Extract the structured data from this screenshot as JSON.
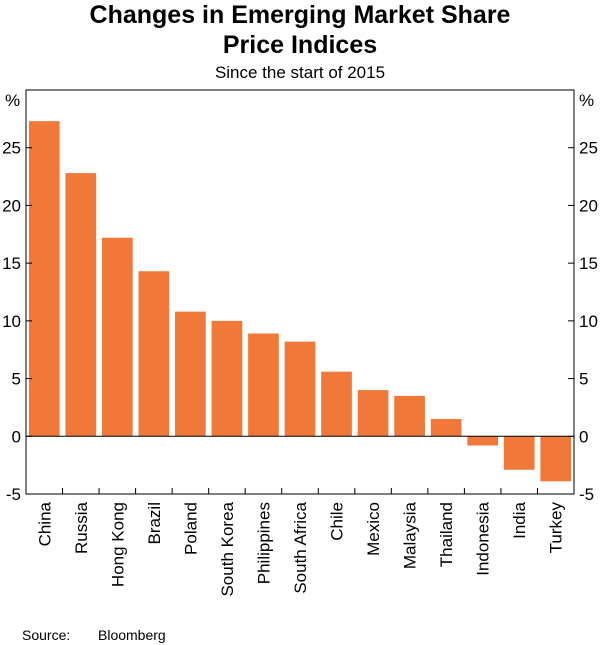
{
  "chart_data": {
    "type": "bar",
    "title": "Changes in Emerging Market Share Price Indices",
    "title_lines": [
      "Changes in Emerging Market Share",
      "Price Indices"
    ],
    "subtitle": "Since the start of 2015",
    "ylabel_left": "%",
    "ylabel_right": "%",
    "ylim": [
      -5,
      30
    ],
    "yticks": [
      -5,
      0,
      5,
      10,
      15,
      20,
      25
    ],
    "categories": [
      "China",
      "Russia",
      "Hong Kong",
      "Brazil",
      "Poland",
      "South Korea",
      "Philippines",
      "South Africa",
      "Chile",
      "Mexico",
      "Malaysia",
      "Thailand",
      "Indonesia",
      "India",
      "Turkey"
    ],
    "values": [
      27.3,
      22.8,
      17.2,
      14.3,
      10.8,
      10.0,
      8.9,
      8.2,
      5.6,
      4.0,
      3.5,
      1.5,
      -0.8,
      -2.9,
      -3.9
    ],
    "bar_color": "#f07838",
    "grid": false
  },
  "source": {
    "label": "Source:",
    "value": "Bloomberg"
  }
}
